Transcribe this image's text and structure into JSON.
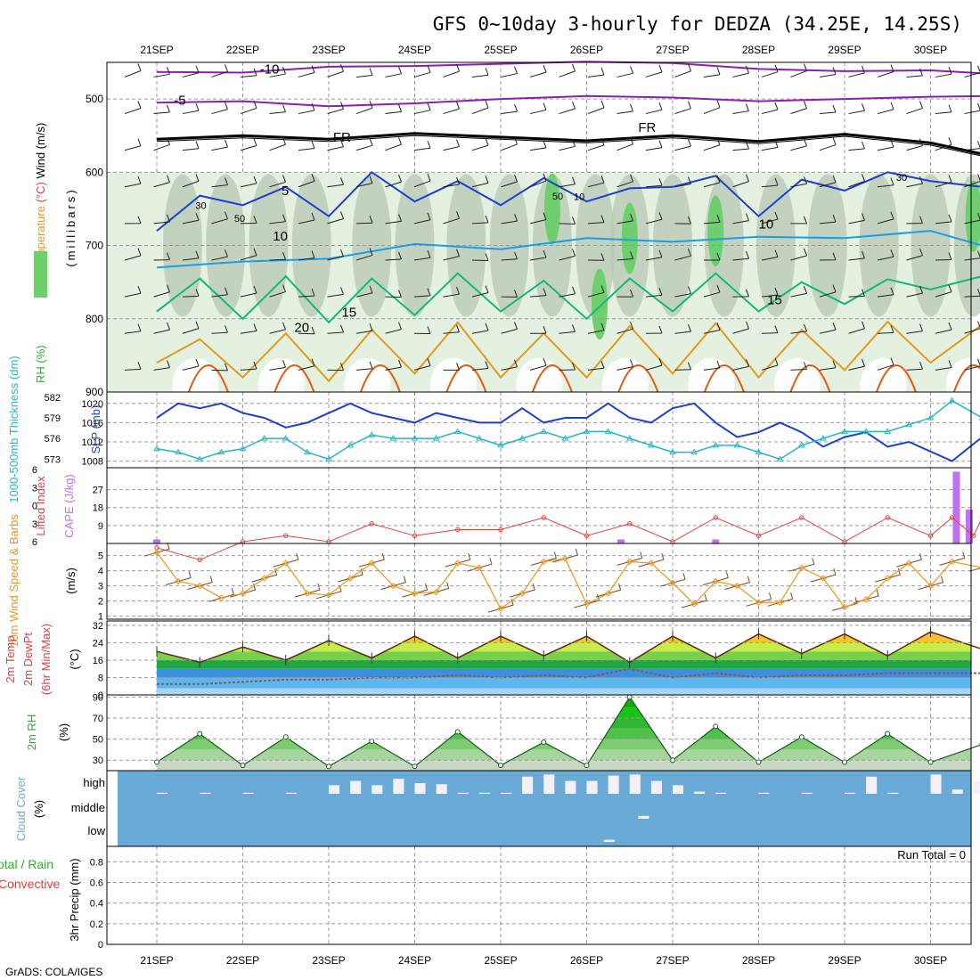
{
  "title": "GFS 0~10day 3-hourly for DEDZA (34.25E, 14.25S)",
  "footer": "GrADS: COLA/IGES",
  "dates": [
    "21SEP",
    "22SEP",
    "23SEP",
    "24SEP",
    "25SEP",
    "26SEP",
    "27SEP",
    "28SEP",
    "29SEP",
    "30SEP"
  ],
  "colors": {
    "temp_purple": "#8a1fb0",
    "temp_blue": "#1f3fd0",
    "temp_lightblue": "#1a9ee8",
    "temp_green": "#14b878",
    "temp_orange": "#e39a1c",
    "temp_darkorange": "#e05a10",
    "rh_light": "#e4f0e0",
    "rh_mid": "#b8c8b4",
    "rh_dark": "#6fcf6f",
    "slp": "#1f3fd0",
    "thickness": "#2ab6c0",
    "li": "#e04040",
    "cape": "#c070f0",
    "wind": "#e8961e",
    "cloud": "#6aaad6",
    "rh2m": "#2fae2f"
  },
  "chart_data": [
    {
      "type": "area",
      "panel": "upper-air",
      "ylabel_parts": [
        {
          "text": "RH (%)",
          "color": "#2fae2f"
        },
        {
          "text": "Temperature",
          "color": "#e39a1c"
        },
        {
          "text": "(°C)",
          "color": "#e04040"
        },
        {
          "text": "Wind",
          "color": "#000000"
        },
        {
          "text": "(m/s)",
          "color": "#000000"
        }
      ],
      "ylabel2": "(millibars)",
      "y_ticks": [
        500,
        600,
        700,
        800,
        900
      ],
      "ylim": [
        450,
        900
      ],
      "y_reversed": true,
      "contour_labels": [
        "-10",
        "-5",
        "FR",
        "FR",
        "5",
        "10",
        "10",
        "15",
        "15",
        "20",
        "30",
        "30",
        "50",
        "50",
        "10"
      ],
      "isotherms": [
        {
          "name": "-10",
          "x": [
            0,
            1,
            2,
            3,
            4,
            5,
            6,
            7,
            8,
            9,
            9.6
          ],
          "y": [
            463,
            464,
            456,
            455,
            452,
            449,
            451,
            459,
            462,
            461,
            465
          ]
        },
        {
          "name": "-5",
          "x": [
            0,
            1,
            2,
            3,
            4,
            5,
            6,
            7,
            8,
            9,
            9.6
          ],
          "y": [
            505,
            503,
            510,
            506,
            500,
            496,
            498,
            503,
            500,
            497,
            496
          ]
        },
        {
          "name": "FR",
          "x": [
            0,
            1,
            2,
            3,
            4,
            5,
            6,
            7,
            8,
            9,
            9.6
          ],
          "y": [
            555,
            550,
            555,
            547,
            552,
            557,
            550,
            558,
            548,
            560,
            575
          ]
        },
        {
          "name": "5",
          "x": [
            0,
            0.5,
            1,
            1.5,
            2,
            2.5,
            3,
            3.5,
            4,
            4.5,
            5,
            5.5,
            6,
            6.5,
            7,
            7.5,
            8,
            8.5,
            9,
            9.6
          ],
          "y": [
            680,
            632,
            645,
            620,
            660,
            600,
            640,
            612,
            645,
            608,
            640,
            622,
            620,
            605,
            660,
            610,
            625,
            600,
            612,
            620
          ]
        },
        {
          "name": "10",
          "x": [
            0,
            1,
            2,
            3,
            4,
            5,
            6,
            7,
            8,
            9,
            9.6
          ],
          "y": [
            730,
            722,
            718,
            698,
            705,
            690,
            695,
            688,
            690,
            680,
            700
          ]
        },
        {
          "name": "15",
          "x": [
            0,
            0.5,
            1,
            1.5,
            2,
            2.5,
            3,
            3.5,
            4,
            4.5,
            5,
            5.5,
            6,
            6.5,
            7,
            7.5,
            8,
            8.5,
            9,
            9.6
          ],
          "y": [
            790,
            745,
            800,
            742,
            805,
            745,
            795,
            738,
            790,
            748,
            800,
            745,
            790,
            738,
            790,
            750,
            780,
            746,
            760,
            742
          ]
        },
        {
          "name": "20",
          "x": [
            0,
            0.5,
            1,
            1.5,
            2,
            2.5,
            3,
            3.5,
            4,
            4.5,
            5,
            5.5,
            6,
            6.5,
            7,
            7.5,
            8,
            8.5,
            9,
            9.6
          ],
          "y": [
            860,
            828,
            880,
            820,
            885,
            815,
            875,
            805,
            880,
            820,
            880,
            810,
            875,
            806,
            880,
            815,
            870,
            804,
            860,
            808
          ]
        }
      ]
    },
    {
      "type": "line",
      "panel": "slp-thickness",
      "ylabel_left": "1000-500mb Thickness (dm)",
      "ylabel_right": "SLP (mb)",
      "y_ticks_thickness": [
        573,
        576,
        579,
        582
      ],
      "y_ticks_slp": [
        1008,
        1012,
        1016,
        1020
      ],
      "x": [
        0,
        0.25,
        0.5,
        0.75,
        1,
        1.25,
        1.5,
        1.75,
        2,
        2.25,
        2.5,
        2.75,
        3,
        3.25,
        3.5,
        3.75,
        4,
        4.25,
        4.5,
        4.75,
        5,
        5.25,
        5.5,
        5.75,
        6,
        6.25,
        6.5,
        6.75,
        7,
        7.25,
        7.5,
        7.75,
        8,
        8.25,
        8.5,
        8.75,
        9,
        9.25,
        9.6
      ],
      "series": [
        {
          "name": "SLP (mb)",
          "values": [
            1017,
            1020,
            1019,
            1020,
            1018,
            1017,
            1015,
            1016,
            1018,
            1020,
            1018,
            1017,
            1016,
            1018,
            1017,
            1016,
            1016,
            1019,
            1016,
            1017,
            1017,
            1020,
            1017,
            1016,
            1019,
            1020,
            1016,
            1013,
            1014,
            1016,
            1014,
            1011,
            1013,
            1014,
            1011,
            1012,
            1010,
            1008,
            1013
          ]
        },
        {
          "name": "1000-500mb Thickness (dm)",
          "values": [
            574.5,
            574,
            573,
            574,
            574.5,
            576,
            576,
            574,
            573,
            575,
            576.5,
            576,
            576,
            576,
            577,
            576,
            575,
            576,
            577,
            576,
            577,
            577,
            576,
            575,
            574,
            574,
            575,
            575,
            574,
            573,
            575,
            576,
            577,
            577,
            577,
            578,
            579,
            581.5,
            579
          ]
        }
      ]
    },
    {
      "type": "bar",
      "panel": "instability",
      "ylabel_left": "Lifted Index",
      "ylabel_right": "CAPE (J/kg)",
      "li_ticks": [
        -6,
        -3,
        0,
        3,
        6
      ],
      "cape_ticks": [
        9,
        18,
        27
      ],
      "li_x": [
        0,
        0.5,
        1,
        1.5,
        2,
        2.5,
        3,
        3.5,
        4,
        4.5,
        5,
        5.5,
        6,
        6.5,
        7,
        7.5,
        8,
        8.5,
        9,
        9.25,
        9.5,
        9.6
      ],
      "li_values": [
        7,
        9,
        6,
        5,
        6,
        3,
        5,
        4,
        4,
        2,
        5,
        3,
        6,
        2,
        5,
        2,
        6,
        2,
        5,
        2,
        5,
        2
      ],
      "cape_x": [
        0,
        5.4,
        6.5,
        9.3,
        9.45
      ],
      "cape_values": [
        2,
        2,
        2,
        36,
        17
      ]
    },
    {
      "type": "line",
      "panel": "wind-10m",
      "ylabel": "10m Wind Speed & Barbs",
      "yunit": "(m/s)",
      "y_ticks": [
        1,
        2,
        3,
        4,
        5
      ],
      "x": [
        0,
        0.25,
        0.5,
        0.75,
        1,
        1.25,
        1.5,
        1.75,
        2,
        2.25,
        2.5,
        2.75,
        3,
        3.25,
        3.5,
        3.75,
        4,
        4.25,
        4.5,
        4.75,
        5,
        5.25,
        5.5,
        5.75,
        6,
        6.25,
        6.5,
        6.75,
        7,
        7.25,
        7.5,
        7.75,
        8,
        8.25,
        8.5,
        8.75,
        9,
        9.25,
        9.6
      ],
      "values": [
        5.2,
        3.3,
        3.0,
        2.2,
        2.5,
        3.5,
        4.5,
        2.5,
        2.4,
        3.5,
        4.5,
        3.0,
        2.5,
        2.6,
        4.5,
        4.2,
        1.5,
        2.5,
        4.6,
        4.8,
        1.8,
        2.5,
        4.6,
        4.5,
        3.2,
        1.8,
        3.3,
        3.0,
        1.9,
        1.9,
        4.2,
        3.5,
        1.6,
        2.1,
        3.5,
        4.5,
        3.0,
        4.6,
        4.2
      ]
    },
    {
      "type": "area",
      "panel": "temp-2m",
      "ylabel": "2m Temp 2m DewPt (6hr Min/Max)",
      "yunit": "(°C)",
      "y_ticks": [
        0,
        8,
        16,
        24,
        32
      ],
      "x": [
        0,
        0.5,
        1,
        1.5,
        2,
        2.5,
        3,
        3.5,
        4,
        4.5,
        5,
        5.5,
        6,
        6.5,
        7,
        7.5,
        8,
        8.5,
        9,
        9.6
      ],
      "series": [
        {
          "name": "2m Temp",
          "values": [
            20,
            15,
            22,
            16,
            25,
            17,
            27,
            17,
            27,
            18,
            27,
            15,
            27,
            17,
            28,
            19,
            28,
            18,
            29,
            21
          ]
        },
        {
          "name": "2m DewPt",
          "values": [
            5,
            5,
            6,
            7,
            7,
            8,
            8,
            9,
            8,
            9,
            8,
            12,
            8,
            10,
            8,
            9,
            9,
            10,
            10,
            10
          ]
        }
      ]
    },
    {
      "type": "area",
      "panel": "rh-2m",
      "ylabel": "2m RH",
      "yunit": "(%)",
      "y_ticks": [
        30,
        50,
        70,
        90
      ],
      "x": [
        0,
        0.5,
        1,
        1.5,
        2,
        2.5,
        3,
        3.5,
        4,
        4.5,
        5,
        5.5,
        6,
        6.5,
        7,
        7.5,
        8,
        8.5,
        9,
        9.6
      ],
      "values": [
        28,
        55,
        25,
        52,
        24,
        48,
        24,
        57,
        25,
        47,
        25,
        90,
        30,
        62,
        28,
        52,
        28,
        55,
        28,
        45
      ]
    },
    {
      "type": "bar",
      "panel": "cloud-cover",
      "ylabel": "Cloud Cover",
      "yunit": "(%)",
      "levels": [
        "high",
        "middle",
        "low"
      ],
      "high_x": [
        0,
        0.5,
        1,
        1.5,
        2,
        2.25,
        2.5,
        2.75,
        3,
        3.25,
        3.5,
        3.75,
        4,
        4.25,
        4.5,
        4.75,
        5,
        5.25,
        5.5,
        5.75,
        6,
        6.25,
        6.5,
        7,
        7.5,
        8,
        8.25,
        8.5,
        9,
        9.25,
        9.5
      ],
      "high_values": [
        5,
        5,
        5,
        5,
        40,
        60,
        40,
        70,
        50,
        45,
        5,
        5,
        5,
        80,
        90,
        60,
        60,
        85,
        90,
        60,
        40,
        10,
        5,
        5,
        5,
        5,
        80,
        5,
        90,
        20,
        60
      ],
      "middle_x": [
        5.6
      ],
      "middle_values": [
        40
      ],
      "low_x": [
        5.2
      ],
      "low_values": [
        30
      ]
    },
    {
      "type": "bar",
      "panel": "precip",
      "ylabel_left": "Total / Rain",
      "ylabel_left2": "Convective",
      "ylabel": "3hr Precip (mm)",
      "y_ticks": [
        0,
        0.2,
        0.4,
        0.6,
        0.8
      ],
      "run_total_label": "Run Total = 0",
      "x": [
        0,
        1,
        2,
        3,
        4,
        5,
        6,
        7,
        8,
        9
      ],
      "values": [
        0,
        0,
        0,
        0,
        0,
        0,
        0,
        0,
        0,
        0
      ]
    }
  ]
}
